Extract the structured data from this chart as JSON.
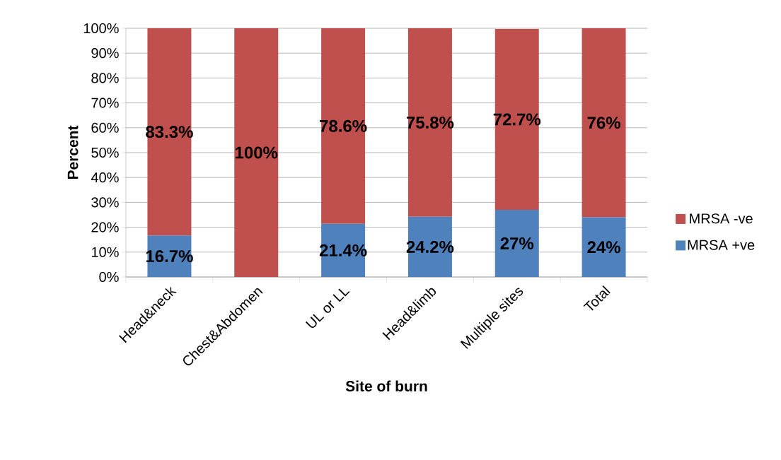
{
  "chart_data": {
    "type": "bar",
    "stacked": true,
    "xlabel": "Site of burn",
    "ylabel": "Percent",
    "categories": [
      "Head&neck",
      "Chest&Abdomen",
      "UL or LL",
      "Head&limb",
      "Multiple sites",
      "Total"
    ],
    "series": [
      {
        "name": "MRSA +ve",
        "color": "#4f81bd",
        "values": [
          16.7,
          0,
          21.4,
          24.2,
          27,
          24
        ],
        "value_labels": [
          "16.7%",
          null,
          "21.4%",
          "24.2%",
          "27%",
          "24%"
        ]
      },
      {
        "name": "MRSA -ve",
        "color": "#c0504d",
        "values": [
          83.3,
          100,
          78.6,
          75.8,
          72.7,
          76
        ],
        "value_labels": [
          "83.3%",
          "100%",
          "78.6%",
          "75.8%",
          "72.7%",
          "76%"
        ]
      }
    ],
    "ylim": [
      0,
      100
    ],
    "yticks": [
      {
        "value": 0,
        "label": "0%"
      },
      {
        "value": 10,
        "label": "10%"
      },
      {
        "value": 20,
        "label": "20%"
      },
      {
        "value": 30,
        "label": "30%"
      },
      {
        "value": 40,
        "label": "40%"
      },
      {
        "value": 50,
        "label": "50%"
      },
      {
        "value": 60,
        "label": "60%"
      },
      {
        "value": 70,
        "label": "70%"
      },
      {
        "value": 80,
        "label": "80%"
      },
      {
        "value": 90,
        "label": "90%"
      },
      {
        "value": 100,
        "label": "100%"
      }
    ],
    "grid": "y",
    "legend": "right"
  }
}
